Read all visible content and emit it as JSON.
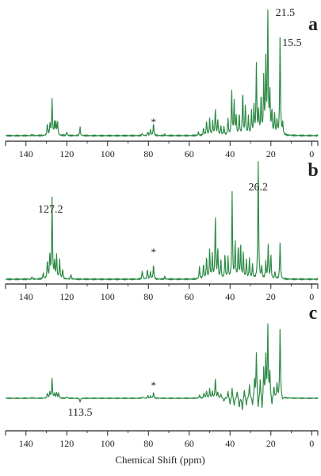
{
  "figure": {
    "xlabel": "Chemical Shift (ppm)",
    "line_color": "#2e8b46"
  },
  "chart_data": [
    {
      "type": "line",
      "panel_label": "a",
      "title": "",
      "xlabel": "",
      "ylabel": "",
      "xlim": [
        150,
        -3
      ],
      "x_reversed": true,
      "x_ticks": [
        140,
        120,
        100,
        80,
        60,
        40,
        20,
        0
      ],
      "annotations": [
        {
          "text": "21.5",
          "x": 21.5
        },
        {
          "text": "15.5",
          "x": 15.5
        },
        {
          "text": "*",
          "x": 77.5
        }
      ],
      "peaks": [
        {
          "x": 137.0,
          "y": 0.01
        },
        {
          "x": 129.5,
          "y": 0.1
        },
        {
          "x": 128.2,
          "y": 0.1
        },
        {
          "x": 127.2,
          "y": 0.3
        },
        {
          "x": 126.0,
          "y": 0.1
        },
        {
          "x": 125.3,
          "y": 0.1
        },
        {
          "x": 124.5,
          "y": 0.11
        },
        {
          "x": 120.0,
          "y": 0.03
        },
        {
          "x": 113.5,
          "y": 0.07
        },
        {
          "x": 83.0,
          "y": 0.02
        },
        {
          "x": 80.3,
          "y": 0.03
        },
        {
          "x": 79.0,
          "y": 0.05
        },
        {
          "x": 77.5,
          "y": 0.1
        },
        {
          "x": 72.0,
          "y": 0.01
        },
        {
          "x": 55.5,
          "y": 0.03
        },
        {
          "x": 53.0,
          "y": 0.06
        },
        {
          "x": 51.5,
          "y": 0.12
        },
        {
          "x": 50.0,
          "y": 0.14
        },
        {
          "x": 48.5,
          "y": 0.12
        },
        {
          "x": 47.2,
          "y": 0.22
        },
        {
          "x": 46.0,
          "y": 0.13
        },
        {
          "x": 44.5,
          "y": 0.08
        },
        {
          "x": 43.0,
          "y": 0.07
        },
        {
          "x": 41.0,
          "y": 0.14
        },
        {
          "x": 39.2,
          "y": 0.37
        },
        {
          "x": 38.0,
          "y": 0.28
        },
        {
          "x": 37.0,
          "y": 0.16
        },
        {
          "x": 35.5,
          "y": 0.17
        },
        {
          "x": 33.8,
          "y": 0.36
        },
        {
          "x": 32.5,
          "y": 0.24
        },
        {
          "x": 31.0,
          "y": 0.15
        },
        {
          "x": 29.5,
          "y": 0.2
        },
        {
          "x": 28.3,
          "y": 0.24
        },
        {
          "x": 27.1,
          "y": 0.59
        },
        {
          "x": 26.0,
          "y": 0.2
        },
        {
          "x": 24.8,
          "y": 0.32
        },
        {
          "x": 23.5,
          "y": 0.46
        },
        {
          "x": 22.5,
          "y": 0.6
        },
        {
          "x": 21.5,
          "y": 1.0
        },
        {
          "x": 20.5,
          "y": 0.34
        },
        {
          "x": 19.5,
          "y": 0.2
        },
        {
          "x": 18.2,
          "y": 0.18
        },
        {
          "x": 17.0,
          "y": 0.12
        },
        {
          "x": 15.5,
          "y": 0.82
        },
        {
          "x": 14.2,
          "y": 0.1
        }
      ]
    },
    {
      "type": "line",
      "panel_label": "b",
      "title": "",
      "xlabel": "",
      "ylabel": "",
      "xlim": [
        150,
        -3
      ],
      "x_reversed": true,
      "x_ticks": [
        140,
        120,
        100,
        80,
        60,
        40,
        20,
        0
      ],
      "annotations": [
        {
          "text": "127.2",
          "x": 127.2
        },
        {
          "text": "26.2",
          "x": 26.2
        },
        {
          "text": "*",
          "x": 77.5
        }
      ],
      "peaks": [
        {
          "x": 137.0,
          "y": 0.02
        },
        {
          "x": 131.5,
          "y": 0.05
        },
        {
          "x": 129.5,
          "y": 0.15
        },
        {
          "x": 128.3,
          "y": 0.2
        },
        {
          "x": 127.2,
          "y": 0.67
        },
        {
          "x": 126.0,
          "y": 0.13
        },
        {
          "x": 125.0,
          "y": 0.2
        },
        {
          "x": 123.5,
          "y": 0.16
        },
        {
          "x": 122.0,
          "y": 0.08
        },
        {
          "x": 118.0,
          "y": 0.04
        },
        {
          "x": 83.0,
          "y": 0.07
        },
        {
          "x": 80.5,
          "y": 0.08
        },
        {
          "x": 79.0,
          "y": 0.06
        },
        {
          "x": 77.5,
          "y": 0.12
        },
        {
          "x": 72.0,
          "y": 0.02
        },
        {
          "x": 55.0,
          "y": 0.1
        },
        {
          "x": 53.0,
          "y": 0.12
        },
        {
          "x": 51.5,
          "y": 0.18
        },
        {
          "x": 50.0,
          "y": 0.24
        },
        {
          "x": 48.7,
          "y": 0.2
        },
        {
          "x": 47.2,
          "y": 0.52
        },
        {
          "x": 46.0,
          "y": 0.24
        },
        {
          "x": 44.5,
          "y": 0.16
        },
        {
          "x": 42.5,
          "y": 0.2
        },
        {
          "x": 41.0,
          "y": 0.18
        },
        {
          "x": 39.0,
          "y": 0.72
        },
        {
          "x": 37.5,
          "y": 0.3
        },
        {
          "x": 36.0,
          "y": 0.26
        },
        {
          "x": 34.8,
          "y": 0.28
        },
        {
          "x": 33.5,
          "y": 0.22
        },
        {
          "x": 32.0,
          "y": 0.16
        },
        {
          "x": 30.5,
          "y": 0.16
        },
        {
          "x": 29.0,
          "y": 0.12
        },
        {
          "x": 26.2,
          "y": 1.0
        },
        {
          "x": 24.5,
          "y": 0.1
        },
        {
          "x": 22.5,
          "y": 0.14
        },
        {
          "x": 21.3,
          "y": 0.28
        },
        {
          "x": 20.0,
          "y": 0.2
        },
        {
          "x": 18.0,
          "y": 0.06
        },
        {
          "x": 15.5,
          "y": 0.3
        }
      ]
    },
    {
      "type": "line",
      "panel_label": "c",
      "title": "",
      "xlabel": "",
      "ylabel": "",
      "xlim": [
        150,
        -3
      ],
      "x_reversed": true,
      "x_ticks": [
        140,
        120,
        100,
        80,
        60,
        40,
        20,
        0
      ],
      "annotations": [
        {
          "text": "113.5",
          "x": 113.5
        },
        {
          "text": "*",
          "x": 77.5
        }
      ],
      "peaks": [
        {
          "x": 137.0,
          "y": 0.01
        },
        {
          "x": 129.5,
          "y": 0.07
        },
        {
          "x": 128.3,
          "y": 0.09
        },
        {
          "x": 127.2,
          "y": 0.27
        },
        {
          "x": 126.0,
          "y": 0.06
        },
        {
          "x": 125.0,
          "y": 0.08
        },
        {
          "x": 124.0,
          "y": 0.07
        },
        {
          "x": 120.0,
          "y": 0.02
        },
        {
          "x": 113.5,
          "y": -0.06
        },
        {
          "x": 83.0,
          "y": 0.02
        },
        {
          "x": 80.3,
          "y": 0.04
        },
        {
          "x": 79.0,
          "y": 0.03
        },
        {
          "x": 77.5,
          "y": 0.08
        },
        {
          "x": 55.0,
          "y": 0.04
        },
        {
          "x": 52.8,
          "y": 0.07
        },
        {
          "x": 51.5,
          "y": 0.1
        },
        {
          "x": 50.0,
          "y": 0.13
        },
        {
          "x": 48.7,
          "y": 0.09
        },
        {
          "x": 47.2,
          "y": 0.27
        },
        {
          "x": 46.0,
          "y": 0.08
        },
        {
          "x": 44.5,
          "y": 0.06
        },
        {
          "x": 43.0,
          "y": -0.05
        },
        {
          "x": 41.0,
          "y": 0.1
        },
        {
          "x": 40.0,
          "y": -0.09
        },
        {
          "x": 39.0,
          "y": 0.15
        },
        {
          "x": 38.0,
          "y": -0.11
        },
        {
          "x": 36.5,
          "y": 0.1
        },
        {
          "x": 35.5,
          "y": -0.14
        },
        {
          "x": 34.0,
          "y": -0.17
        },
        {
          "x": 33.0,
          "y": 0.12
        },
        {
          "x": 32.0,
          "y": -0.1
        },
        {
          "x": 30.5,
          "y": 0.18
        },
        {
          "x": 29.0,
          "y": -0.12
        },
        {
          "x": 28.0,
          "y": 0.25
        },
        {
          "x": 27.1,
          "y": 0.62
        },
        {
          "x": 26.2,
          "y": -0.18
        },
        {
          "x": 25.2,
          "y": 0.25
        },
        {
          "x": 24.3,
          "y": -0.2
        },
        {
          "x": 23.5,
          "y": 0.4
        },
        {
          "x": 22.5,
          "y": 0.55
        },
        {
          "x": 21.5,
          "y": 0.98
        },
        {
          "x": 20.5,
          "y": 0.34
        },
        {
          "x": 19.5,
          "y": -0.12
        },
        {
          "x": 18.5,
          "y": 0.15
        },
        {
          "x": 17.0,
          "y": 0.2
        },
        {
          "x": 15.5,
          "y": 0.95
        },
        {
          "x": 14.2,
          "y": -0.04
        }
      ]
    }
  ]
}
